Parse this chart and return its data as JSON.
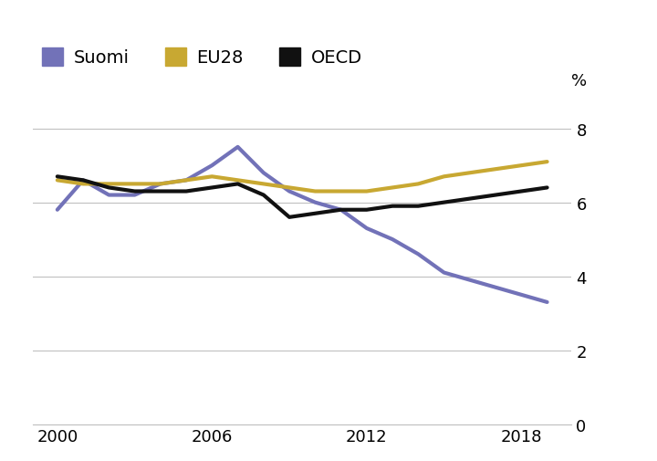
{
  "years": [
    2000,
    2001,
    2002,
    2003,
    2004,
    2005,
    2006,
    2007,
    2008,
    2009,
    2010,
    2011,
    2012,
    2013,
    2014,
    2015,
    2016,
    2017,
    2018,
    2019
  ],
  "suomi": [
    5.8,
    6.6,
    6.2,
    6.2,
    6.5,
    6.6,
    7.0,
    7.5,
    6.8,
    6.3,
    6.0,
    5.8,
    5.3,
    5.0,
    4.6,
    4.1,
    3.9,
    3.7,
    3.5,
    3.3
  ],
  "eu28": [
    6.6,
    6.5,
    6.5,
    6.5,
    6.5,
    6.6,
    6.7,
    6.6,
    6.5,
    6.4,
    6.3,
    6.3,
    6.3,
    6.4,
    6.5,
    6.7,
    6.8,
    6.9,
    7.0,
    7.1
  ],
  "oecd": [
    6.7,
    6.6,
    6.4,
    6.3,
    6.3,
    6.3,
    6.4,
    6.5,
    6.2,
    5.6,
    5.7,
    5.8,
    5.8,
    5.9,
    5.9,
    6.0,
    6.1,
    6.2,
    6.3,
    6.4
  ],
  "suomi_color": "#7272b8",
  "eu28_color": "#c8a832",
  "oecd_color": "#111111",
  "linewidth": 3.0,
  "ylabel": "%",
  "ylim": [
    0,
    9
  ],
  "yticks": [
    0,
    2,
    4,
    6,
    8
  ],
  "xticks": [
    2000,
    2006,
    2012,
    2018
  ],
  "legend_labels": [
    "Suomi",
    "EU28",
    "OECD"
  ],
  "background_color": "#ffffff",
  "grid_color": "#c0c0c0"
}
